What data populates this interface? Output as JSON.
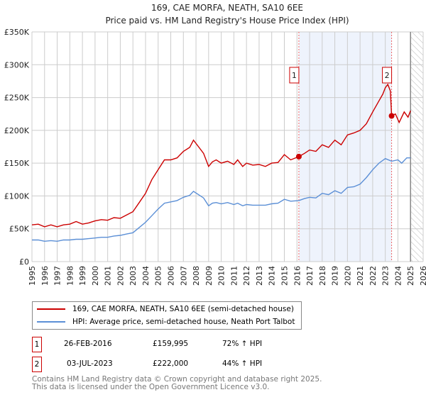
{
  "chart_data": {
    "type": "line",
    "title": "169, CAE MORFA, NEATH, SA10 6EE",
    "subtitle": "Price paid vs. HM Land Registry's House Price Index (HPI)",
    "xlim": [
      1995,
      2026
    ],
    "ylim": [
      0,
      350000
    ],
    "y_ticks": [
      {
        "v": 0,
        "label": "£0"
      },
      {
        "v": 50000,
        "label": "£50K"
      },
      {
        "v": 100000,
        "label": "£100K"
      },
      {
        "v": 150000,
        "label": "£150K"
      },
      {
        "v": 200000,
        "label": "£200K"
      },
      {
        "v": 250000,
        "label": "£250K"
      },
      {
        "v": 300000,
        "label": "£300K"
      },
      {
        "v": 350000,
        "label": "£350K"
      }
    ],
    "x_ticks": [
      "1995",
      "1996",
      "1997",
      "1998",
      "1999",
      "2000",
      "2001",
      "2002",
      "2003",
      "2004",
      "2005",
      "2006",
      "2007",
      "2008",
      "2009",
      "2010",
      "2011",
      "2012",
      "2013",
      "2014",
      "2015",
      "2016",
      "2017",
      "2018",
      "2019",
      "2020",
      "2021",
      "2022",
      "2023",
      "2024",
      "2025",
      "2026"
    ],
    "grid": true,
    "series": [
      {
        "name": "169, CAE MORFA, NEATH, SA10 6EE (semi-detached house)",
        "color": "#cc0000",
        "x": [
          1995,
          1995.5,
          1996,
          1996.5,
          1997,
          1997.5,
          1998,
          1998.5,
          1999,
          1999.5,
          2000,
          2000.5,
          2001,
          2001.5,
          2002,
          2002.5,
          2003,
          2003.5,
          2004,
          2004.5,
          2005,
          2005.5,
          2006,
          2006.5,
          2007,
          2007.5,
          2007.8,
          2008.2,
          2008.6,
          2009,
          2009.3,
          2009.6,
          2010,
          2010.5,
          2011,
          2011.3,
          2011.7,
          2012,
          2012.5,
          2013,
          2013.5,
          2014,
          2014.5,
          2015,
          2015.5,
          2016.15,
          2016.6,
          2017,
          2017.5,
          2018,
          2018.5,
          2019,
          2019.5,
          2020,
          2020.5,
          2021,
          2021.5,
          2022,
          2022.5,
          2022.8,
          2023,
          2023.2,
          2023.4,
          2023.5,
          2023.8,
          2024.1,
          2024.5,
          2024.8,
          2025
        ],
        "y": [
          56000,
          57000,
          53000,
          56000,
          53000,
          56000,
          57000,
          61000,
          57000,
          59000,
          62000,
          64000,
          63000,
          67000,
          66000,
          71000,
          76000,
          90000,
          104000,
          125000,
          140000,
          155000,
          155000,
          158000,
          168000,
          174000,
          185000,
          175000,
          165000,
          145000,
          152000,
          155000,
          150000,
          153000,
          148000,
          155000,
          145000,
          150000,
          147000,
          148000,
          145000,
          150000,
          151000,
          163000,
          155000,
          160000,
          165000,
          170000,
          168000,
          178000,
          174000,
          185000,
          178000,
          193000,
          196000,
          200000,
          210000,
          228000,
          245000,
          255000,
          265000,
          270000,
          260000,
          222000,
          225000,
          212000,
          228000,
          220000,
          230000
        ]
      },
      {
        "name": "HPI: Average price, semi-detached house, Neath Port Talbot",
        "color": "#5b8fd6",
        "x": [
          1995,
          1995.5,
          1996,
          1996.5,
          1997,
          1997.5,
          1998,
          1998.5,
          1999,
          1999.5,
          2000,
          2000.5,
          2001,
          2001.5,
          2002,
          2002.5,
          2003,
          2003.5,
          2004,
          2004.5,
          2005,
          2005.5,
          2006,
          2006.5,
          2007,
          2007.5,
          2007.8,
          2008.2,
          2008.6,
          2009,
          2009.3,
          2009.6,
          2010,
          2010.5,
          2011,
          2011.3,
          2011.7,
          2012,
          2012.5,
          2013,
          2013.5,
          2014,
          2014.5,
          2015,
          2015.5,
          2016.15,
          2016.6,
          2017,
          2017.5,
          2018,
          2018.5,
          2019,
          2019.5,
          2020,
          2020.5,
          2021,
          2021.5,
          2022,
          2022.5,
          2023,
          2023.5,
          2024,
          2024.3,
          2024.7,
          2025
        ],
        "y": [
          33000,
          33000,
          31000,
          32000,
          31000,
          33000,
          33000,
          34000,
          34000,
          35000,
          36000,
          37000,
          37000,
          39000,
          40000,
          42000,
          44000,
          52000,
          60000,
          70000,
          80000,
          89000,
          91000,
          93000,
          98000,
          101000,
          107000,
          102000,
          97000,
          85000,
          89000,
          90000,
          88000,
          90000,
          87000,
          89000,
          85000,
          87000,
          86000,
          86000,
          86000,
          88000,
          89000,
          95000,
          92000,
          93000,
          96000,
          98000,
          97000,
          104000,
          102000,
          108000,
          104000,
          113000,
          114000,
          118000,
          128000,
          140000,
          150000,
          157000,
          153000,
          155000,
          150000,
          158000,
          158000
        ]
      }
    ],
    "shaded_range": [
      2016.15,
      2023.5
    ],
    "hatched_from": 2025,
    "sales": [
      {
        "id": "1",
        "x": 2016.15,
        "y": 159995
      },
      {
        "id": "2",
        "x": 2023.5,
        "y": 222000
      }
    ]
  },
  "legend": {
    "red": "169, CAE MORFA, NEATH, SA10 6EE (semi-detached house)",
    "blue": "HPI: Average price, semi-detached house, Neath Port Talbot"
  },
  "table": [
    {
      "id": "1",
      "date": "26-FEB-2016",
      "price": "£159,995",
      "hpi": "72% ↑ HPI"
    },
    {
      "id": "2",
      "date": "03-JUL-2023",
      "price": "£222,000",
      "hpi": "44% ↑ HPI"
    }
  ],
  "footer": {
    "line1": "Contains HM Land Registry data © Crown copyright and database right 2025.",
    "line2": "This data is licensed under the Open Government Licence v3.0."
  }
}
